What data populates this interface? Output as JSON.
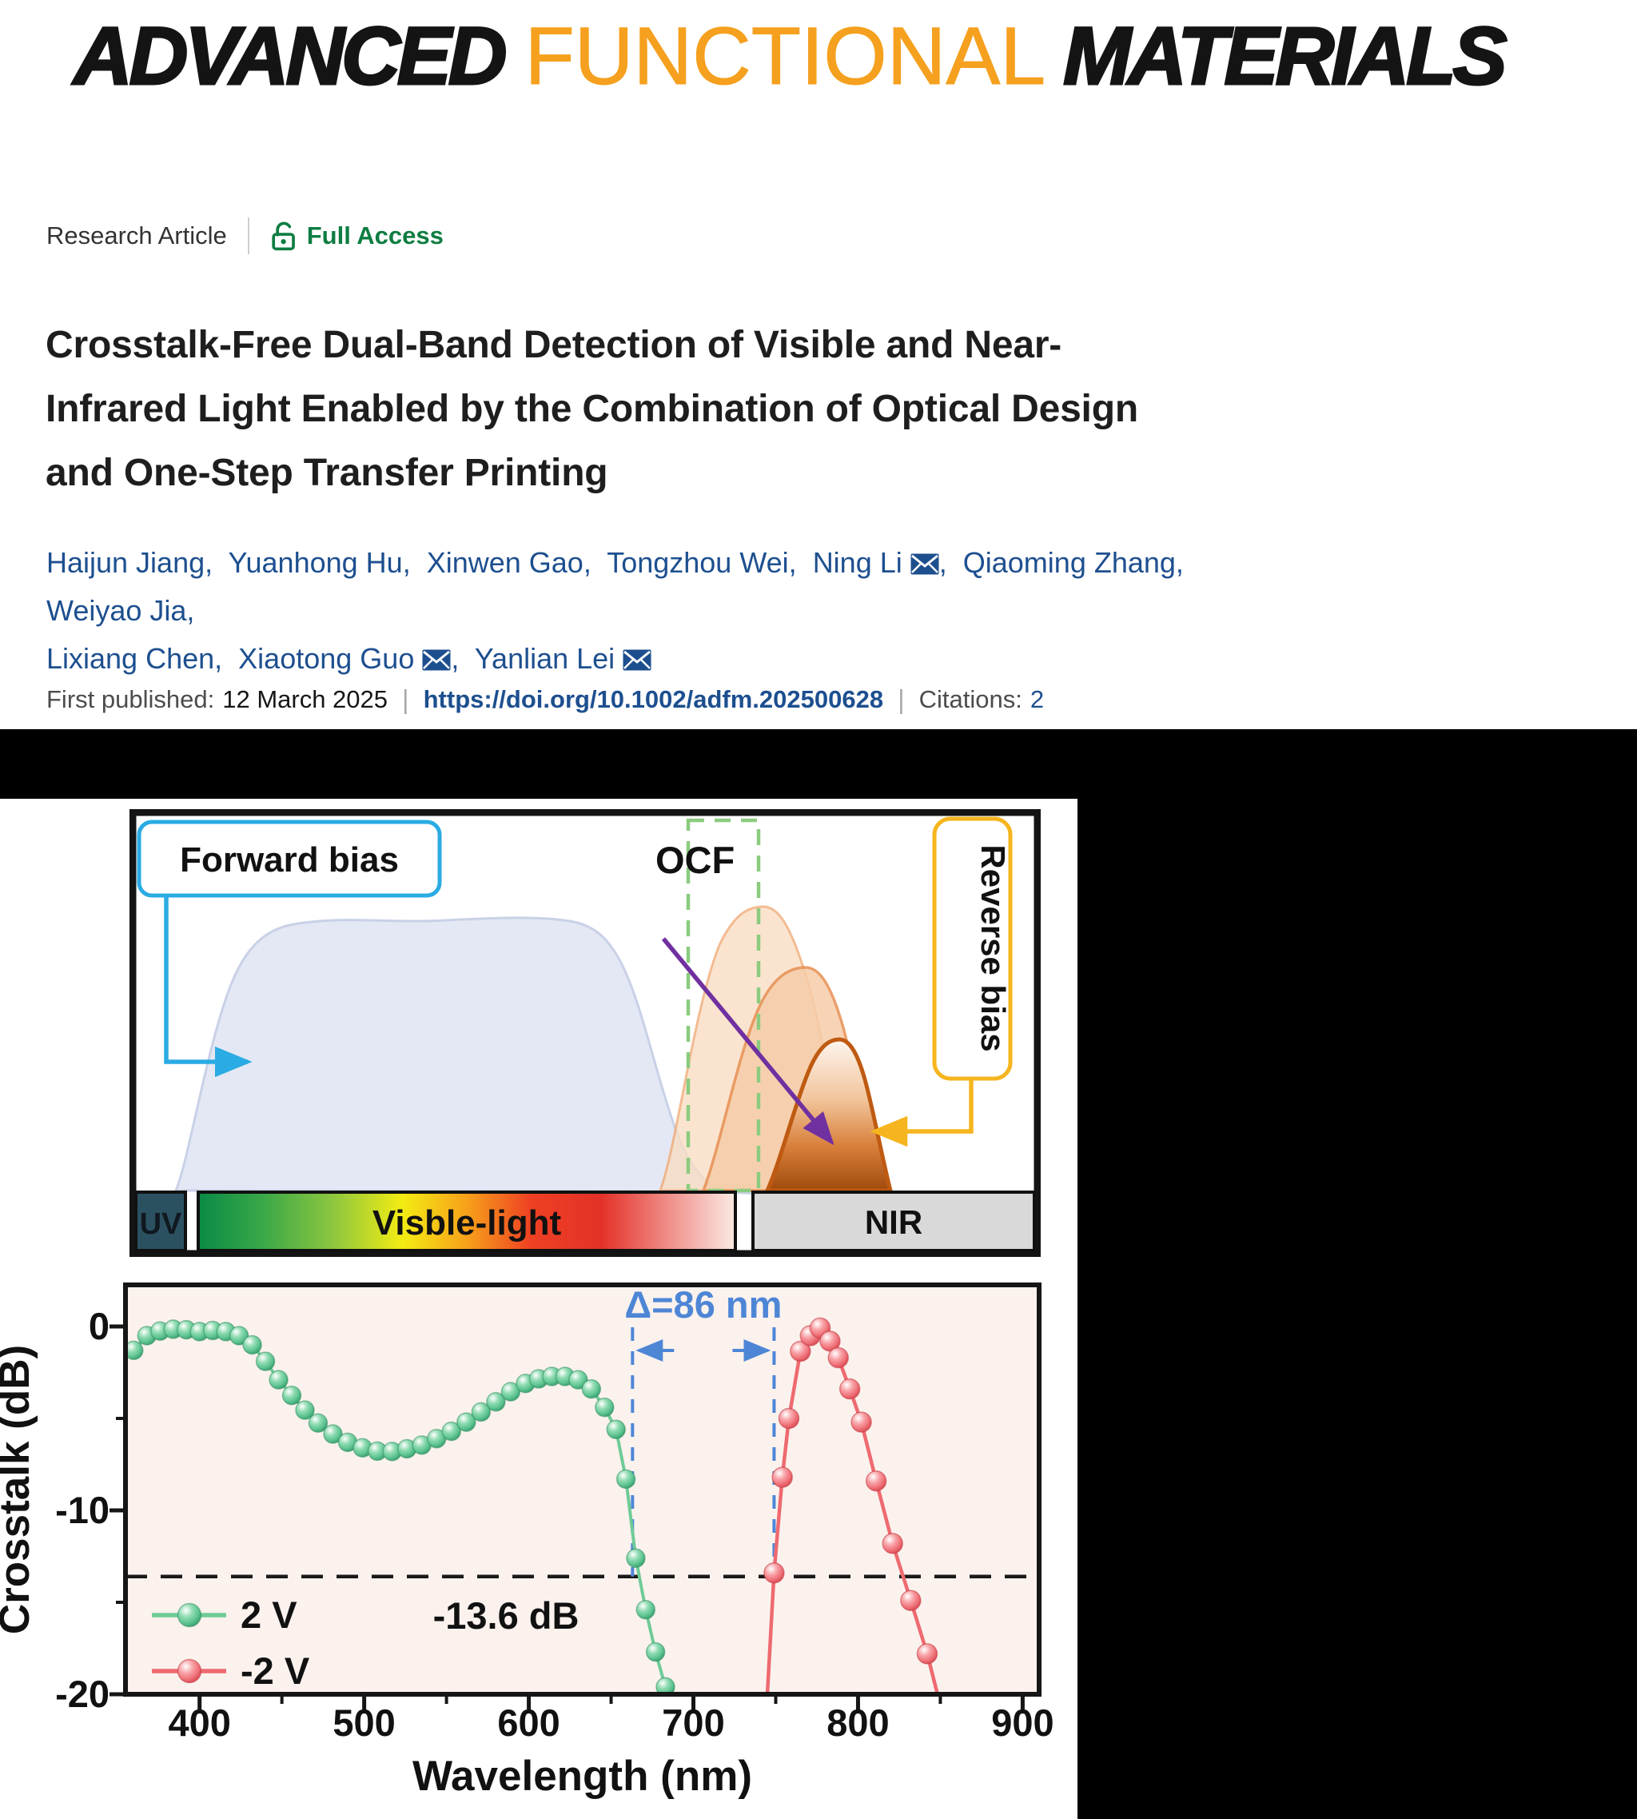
{
  "journal": {
    "logo_advanced": "ADVANCED",
    "logo_functional": "FUNCTIONAL",
    "logo_materials": "MATERIALS"
  },
  "meta": {
    "article_type": "Research Article",
    "access_label": "Full Access"
  },
  "title": {
    "lines": [
      "Crosstalk-Free Dual-Band Detection of Visible and Near-",
      "Infrared Light Enabled by the Combination of Optical Design",
      "and One-Step Transfer Printing"
    ]
  },
  "authors": [
    {
      "name": "Haijun Jiang"
    },
    {
      "name": "Yuanhong Hu"
    },
    {
      "name": "Xinwen Gao"
    },
    {
      "name": "Tongzhou Wei"
    },
    {
      "name": "Ning Li",
      "email": true
    },
    {
      "name": "Qiaoming Zhang"
    },
    {
      "name": "Weiyao Jia",
      "break_after": true
    },
    {
      "name": "Lixiang Chen"
    },
    {
      "name": "Xiaotong Guo",
      "email": true
    },
    {
      "name": "Yanlian Lei",
      "email": true
    }
  ],
  "publine": {
    "published_label": "First published:",
    "published_date": "12 March 2025",
    "doi": "https://doi.org/10.1002/adfm.202500628",
    "citations_label": "Citations:",
    "citations_count": "2"
  },
  "figure": {
    "diagram": {
      "forward_bias_label": "Forward bias",
      "ocf_label": "OCF",
      "reverse_bias_label": "Reverse bias",
      "spectrum": {
        "uv": "UV",
        "visible": "Visble-light",
        "nir": "NIR"
      }
    },
    "chart_data": {
      "type": "line",
      "xlabel": "Wavelength (nm)",
      "ylabel": "Crosstalk (dB)",
      "xlim": [
        355,
        910
      ],
      "ylim": [
        -20,
        2.26
      ],
      "xticks": [
        400,
        500,
        600,
        700,
        800,
        900
      ],
      "yticks": [
        0,
        -10,
        -20
      ],
      "grid": false,
      "legend_position": "lower left",
      "threshold": {
        "value": -13.6,
        "label": "-13.6 dB"
      },
      "delta_annotation": {
        "label": "Δ=86 nm",
        "x1": 663,
        "x2": 749
      },
      "series": [
        {
          "name": "2 V",
          "color": "#6fcb97",
          "points": [
            [
              360,
              -1.3
            ],
            [
              368,
              -0.5
            ],
            [
              376,
              -0.25
            ],
            [
              384,
              -0.15
            ],
            [
              392,
              -0.18
            ],
            [
              400,
              -0.28
            ],
            [
              408,
              -0.22
            ],
            [
              416,
              -0.28
            ],
            [
              424,
              -0.5
            ],
            [
              432,
              -1.0
            ],
            [
              440,
              -1.9
            ],
            [
              448,
              -2.9
            ],
            [
              456,
              -3.75
            ],
            [
              464,
              -4.55
            ],
            [
              472,
              -5.25
            ],
            [
              481,
              -5.85
            ],
            [
              490,
              -6.3
            ],
            [
              499,
              -6.6
            ],
            [
              508,
              -6.78
            ],
            [
              517,
              -6.8
            ],
            [
              526,
              -6.65
            ],
            [
              535,
              -6.45
            ],
            [
              544,
              -6.1
            ],
            [
              553,
              -5.7
            ],
            [
              562,
              -5.2
            ],
            [
              571,
              -4.65
            ],
            [
              580,
              -4.1
            ],
            [
              589,
              -3.55
            ],
            [
              598,
              -3.1
            ],
            [
              606,
              -2.85
            ],
            [
              614,
              -2.72
            ],
            [
              622,
              -2.72
            ],
            [
              630,
              -2.9
            ],
            [
              638,
              -3.4
            ],
            [
              646,
              -4.4
            ],
            [
              653,
              -5.6
            ],
            [
              659,
              -8.3
            ],
            [
              665,
              -12.6
            ],
            [
              671,
              -15.4
            ],
            [
              677,
              -17.7
            ],
            [
              683,
              -19.6
            ],
            [
              688,
              -21.5
            ]
          ]
        },
        {
          "name": "-2 V",
          "color": "#ee6a70",
          "points": [
            [
              744,
              -21.5
            ],
            [
              749,
              -13.4
            ],
            [
              754,
              -8.2
            ],
            [
              758,
              -5.0
            ],
            [
              765,
              -1.35
            ],
            [
              771,
              -0.5
            ],
            [
              777,
              -0.08
            ],
            [
              783,
              -0.8
            ],
            [
              788,
              -1.7
            ],
            [
              795,
              -3.4
            ],
            [
              802,
              -5.2
            ],
            [
              811,
              -8.4
            ],
            [
              821,
              -11.8
            ],
            [
              832,
              -14.9
            ],
            [
              842,
              -17.8
            ],
            [
              850,
              -20.6
            ]
          ]
        }
      ]
    }
  },
  "colors": {
    "brand_orange": "#F5A01E",
    "access_green": "#0e7d42",
    "link_blue": "#1d4f8f",
    "annotation_blue": "#4e86d6",
    "forward_bias_cyan": "#2aabe3",
    "reverse_bias_yellow": "#f6b51e",
    "ocf_dash_green": "#8ccb7f",
    "arrow_purple": "#7030a0",
    "chart_bg": "#fbf2ee",
    "series_green": "#6fcb97",
    "series_red": "#ee6a70"
  }
}
